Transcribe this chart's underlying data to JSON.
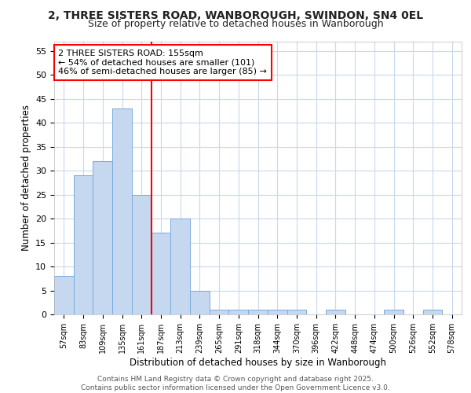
{
  "title_line1": "2, THREE SISTERS ROAD, WANBOROUGH, SWINDON, SN4 0EL",
  "title_line2": "Size of property relative to detached houses in Wanborough",
  "xlabel": "Distribution of detached houses by size in Wanborough",
  "ylabel": "Number of detached properties",
  "categories": [
    "57sqm",
    "83sqm",
    "109sqm",
    "135sqm",
    "161sqm",
    "187sqm",
    "213sqm",
    "239sqm",
    "265sqm",
    "291sqm",
    "318sqm",
    "344sqm",
    "370sqm",
    "396sqm",
    "422sqm",
    "448sqm",
    "474sqm",
    "500sqm",
    "526sqm",
    "552sqm",
    "578sqm"
  ],
  "values": [
    8,
    29,
    32,
    43,
    25,
    17,
    20,
    5,
    1,
    1,
    1,
    1,
    1,
    0,
    1,
    0,
    0,
    1,
    0,
    1,
    0
  ],
  "bar_color": "#c5d8f0",
  "bar_edge_color": "#7aabdb",
  "vline_x_index": 4,
  "vline_color": "red",
  "annotation_text": "2 THREE SISTERS ROAD: 155sqm\n← 54% of detached houses are smaller (101)\n46% of semi-detached houses are larger (85) →",
  "annotation_box_color": "white",
  "annotation_box_edge": "red",
  "ylim": [
    0,
    57
  ],
  "yticks": [
    0,
    5,
    10,
    15,
    20,
    25,
    30,
    35,
    40,
    45,
    50,
    55
  ],
  "fig_bg_color": "#ffffff",
  "plot_bg_color": "#ffffff",
  "grid_color": "#c8d8ee",
  "footer": "Contains HM Land Registry data © Crown copyright and database right 2025.\nContains public sector information licensed under the Open Government Licence v3.0."
}
